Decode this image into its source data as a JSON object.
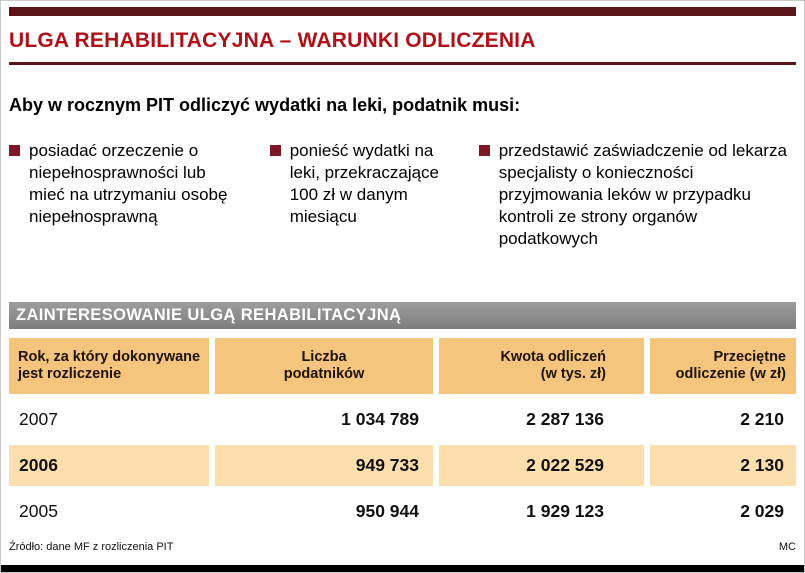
{
  "page": {
    "title": "ULGA REHABILITACYJNA – WARUNKI ODLICZENIA",
    "intro": "Aby w rocznym PIT odliczyć wydatki na leki, podatnik musi:",
    "bullets": [
      "posiadać orzeczenie o niepełnosprawności lub mieć na utrzymaniu osobę niepełnosprawną",
      "ponieść wydatki na leki, przekraczające 100 zł w danym miesiącu",
      "przedstawić zaświadczenie od lekarza specjalisty o konieczności przyjmowania leków w przypadku kontroli ze strony organów podatkowych"
    ],
    "section_title": "ZAINTERESOWANIE ULGĄ REHABILITACYJNĄ",
    "source": "Źródło: dane MF z rozliczenia PIT",
    "credit": "MC"
  },
  "colors": {
    "accent_maroon": "#5a141a",
    "title_red": "#b01118",
    "bullet_red": "#7d1626",
    "banner_gray": "#8c8c8c",
    "header_orange": "#f6c57d",
    "highlight_peach": "#fcdfad"
  },
  "chart_data": {
    "type": "table",
    "title": "ZAINTERESOWANIE ULGĄ REHABILITACYJNĄ",
    "columns": [
      "Rok, za który dokonywane\njest rozliczenie",
      "Liczba\npodatników",
      "Kwota odliczeń\n(w tys. zł)",
      "Przeciętne\nodliczenie (w zł)"
    ],
    "rows": [
      {
        "cells": [
          "2007",
          "1 034 789",
          "2 287 136",
          "2 210"
        ],
        "highlight": false
      },
      {
        "cells": [
          "2006",
          "949 733",
          "2 022 529",
          "2 130"
        ],
        "highlight": true
      },
      {
        "cells": [
          "2005",
          "950 944",
          "1 929 123",
          "2 029"
        ],
        "highlight": false
      }
    ],
    "source": "Źródło: dane MF z rozliczenia PIT"
  }
}
